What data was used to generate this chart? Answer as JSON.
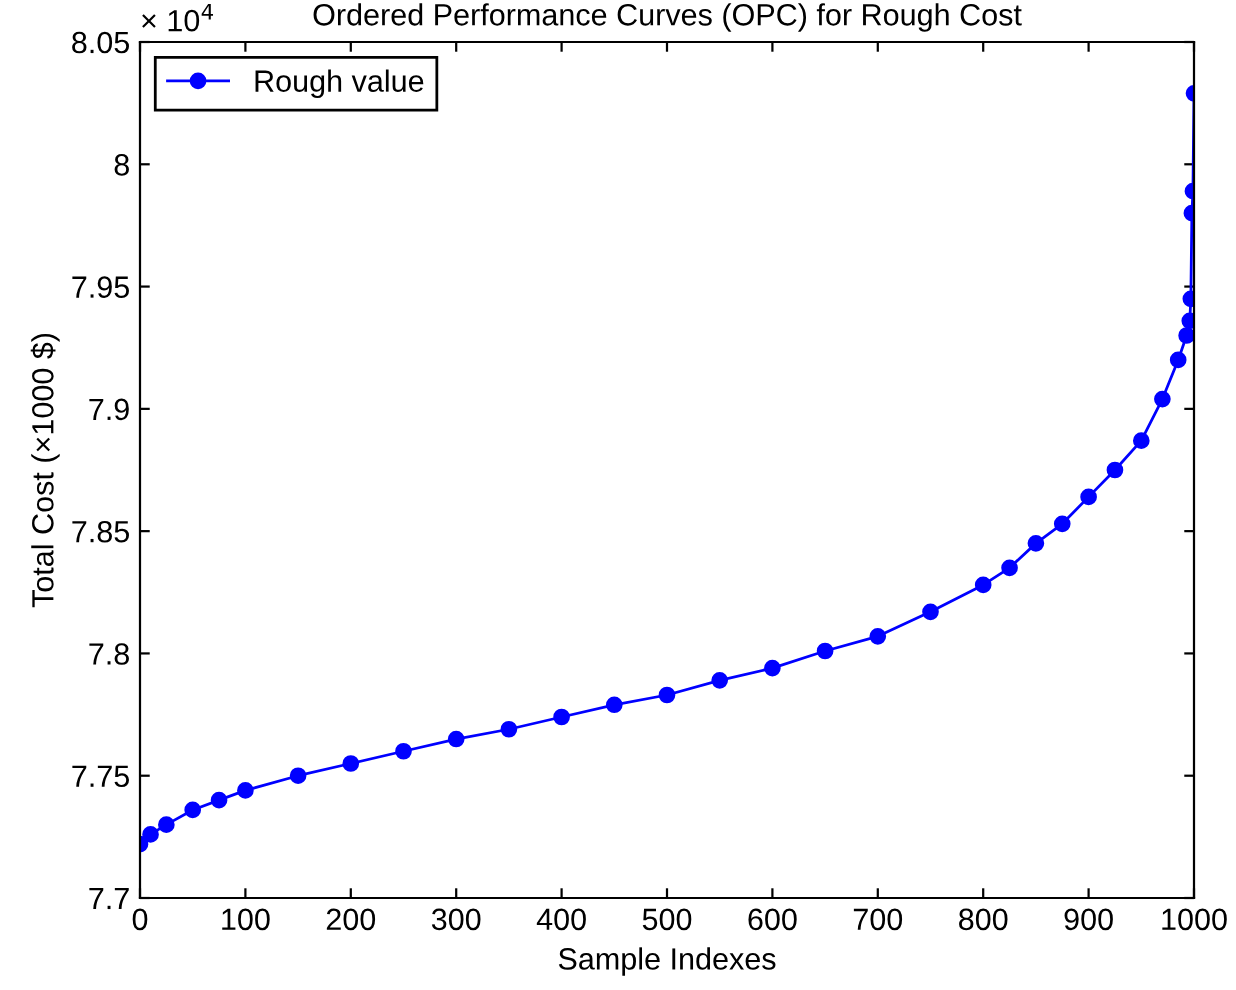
{
  "chart_data": {
    "type": "line",
    "title": "Ordered Performance Curves (OPC) for Rough Cost",
    "xlabel": "Sample Indexes",
    "ylabel": "Total Cost (×1000 $)",
    "annotations": [
      "× 10$^{4}$"
    ],
    "series": [
      {
        "name": "Rough value",
        "color": "#0000ff",
        "x": [
          0,
          10,
          25,
          50,
          75,
          100,
          150,
          200,
          250,
          300,
          350,
          400,
          450,
          500,
          550,
          600,
          650,
          700,
          750,
          800,
          825,
          850,
          875,
          900,
          925,
          950,
          970,
          985,
          993,
          996,
          997,
          998,
          999,
          1000
        ],
        "values": [
          7.722,
          7.726,
          7.73,
          7.736,
          7.74,
          7.744,
          7.75,
          7.755,
          7.76,
          7.765,
          7.769,
          7.774,
          7.779,
          7.783,
          7.789,
          7.794,
          7.801,
          7.807,
          7.817,
          7.828,
          7.835,
          7.845,
          7.853,
          7.864,
          7.875,
          7.887,
          7.904,
          7.92,
          7.93,
          7.936,
          7.945,
          7.98,
          7.989,
          8.029
        ]
      }
    ],
    "xlim": [
      0,
      1000
    ],
    "xticks": [
      0,
      100,
      200,
      300,
      400,
      500,
      600,
      700,
      800,
      900,
      1000
    ],
    "ylim": [
      7.7,
      8.05
    ],
    "yticks": [
      {
        "value": 7.7,
        "label": "7.7"
      },
      {
        "value": 7.75,
        "label": "7.75"
      },
      {
        "value": 7.8,
        "label": "7.8"
      },
      {
        "value": 7.85,
        "label": "7.85"
      },
      {
        "value": 7.9,
        "label": "7.9"
      },
      {
        "value": 7.95,
        "label": "7.95"
      },
      {
        "value": 8.0,
        "label": "8"
      },
      {
        "value": 8.05,
        "label": "8.05"
      }
    ],
    "legend": "top left",
    "marker": "circle",
    "line_style": "solid",
    "grid": false
  }
}
